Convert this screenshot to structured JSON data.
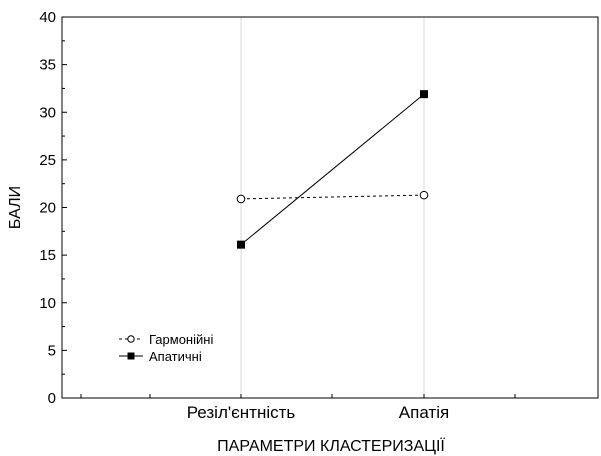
{
  "chart_data": {
    "type": "line",
    "title": "",
    "xlabel": "ПАРАМЕТРИ КЛАСТЕРИЗАЦІЇ",
    "ylabel": "БАЛИ",
    "categories": [
      "Резіл'єнтність",
      "Апатія"
    ],
    "ylim": [
      0,
      40
    ],
    "yticks": [
      0,
      5,
      10,
      15,
      20,
      25,
      30,
      35,
      40
    ],
    "grid": "vertical",
    "legend_position": "bottom-left",
    "series": [
      {
        "name": "Гармонійні",
        "values": [
          20.9,
          21.3
        ],
        "marker": "open-circle",
        "line": "dashed",
        "color": "#000000"
      },
      {
        "name": "Апатичні",
        "values": [
          16.1,
          31.9
        ],
        "marker": "filled-square",
        "line": "solid",
        "color": "#000000"
      }
    ]
  }
}
